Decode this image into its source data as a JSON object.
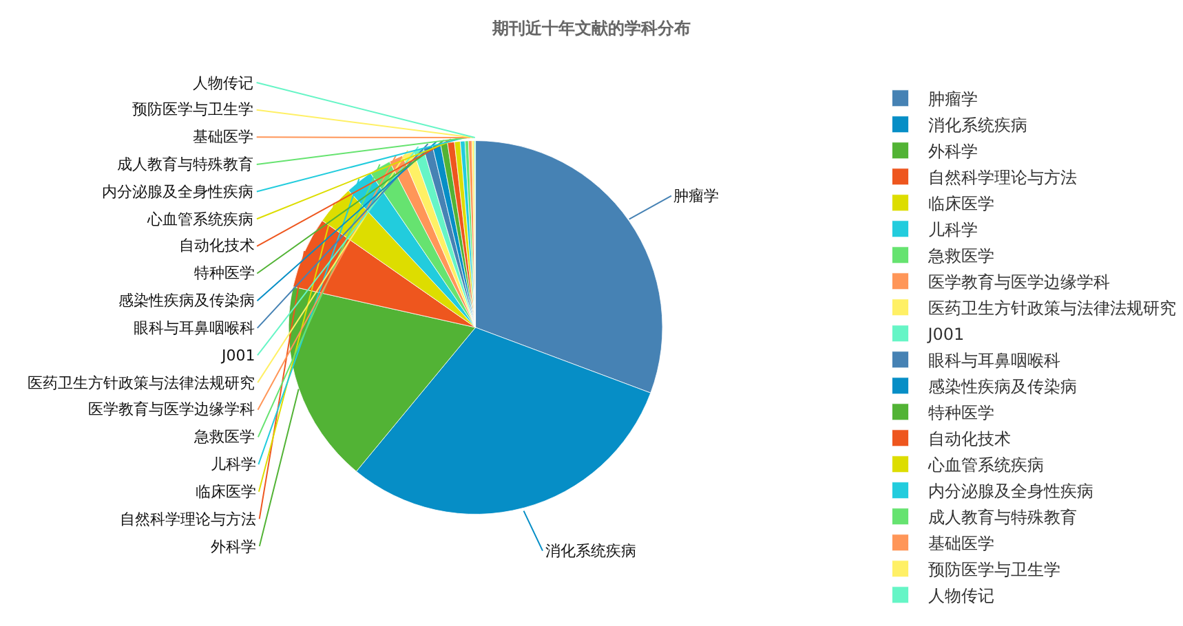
{
  "chart_data": {
    "type": "pie",
    "title": "期刊近十年文献的学科分布",
    "categories": [
      "肿瘤学",
      "消化系统疾病",
      "外科学",
      "自然科学理论与方法",
      "临床医学",
      "儿科学",
      "急救医学",
      "医学教育与医学边缘学科",
      "医药卫生方针政策与法律法规研究",
      "J001",
      "眼科与耳鼻咽喉科",
      "感染性疾病及传染病",
      "特种医学",
      "自动化技术",
      "心血管系统疾病",
      "内分泌腺及全身性疾病",
      "成人教育与特殊教育",
      "基础医学",
      "预防医学与卫生学",
      "人物传记"
    ],
    "values": [
      30.7,
      30.3,
      17.5,
      6.2,
      3.4,
      2.4,
      1.9,
      1.2,
      1.0,
      0.9,
      0.8,
      0.7,
      0.6,
      0.6,
      0.5,
      0.4,
      0.3,
      0.3,
      0.2,
      0.1
    ],
    "colors": [
      "#4682b4",
      "#068ec6",
      "#52b335",
      "#ee561e",
      "#dddd00",
      "#22ccdd",
      "#66e370",
      "#ff9658",
      "#fff065",
      "#66f5c6",
      "#4682b4",
      "#068ec6",
      "#52b335",
      "#ee561e",
      "#dddd00",
      "#22ccdd",
      "#66e370",
      "#ff9658",
      "#fff065",
      "#66f5c6"
    ],
    "legend": "right"
  }
}
